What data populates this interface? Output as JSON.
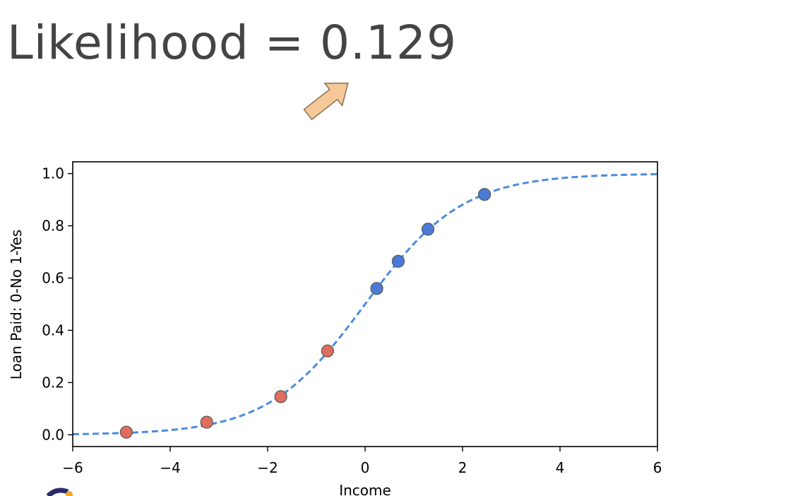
{
  "headline": {
    "label": "Likelihood",
    "operator": "=",
    "value": "0.129"
  },
  "colors": {
    "headline_text": "#444444",
    "arrow_fill": "#f5c997",
    "arrow_stroke": "#8a6d4e",
    "curve": "#4a8be0",
    "class_no": "#e06e5e",
    "class_yes": "#4a7bd8",
    "marker_edge": "#555555"
  },
  "chart_data": {
    "type": "scatter",
    "xlabel": "Income",
    "ylabel": "Loan Paid: 0-No 1-Yes",
    "xlim": [
      -6,
      6
    ],
    "ylim": [
      -0.045,
      1.045
    ],
    "xticks": [
      -6,
      -4,
      -2,
      0,
      2,
      4,
      6
    ],
    "xtick_labels": [
      "−6",
      "−4",
      "−2",
      "0",
      "2",
      "4",
      "6"
    ],
    "yticks": [
      0.0,
      0.2,
      0.4,
      0.6,
      0.8,
      1.0
    ],
    "ytick_labels": [
      "0.0",
      "0.2",
      "0.4",
      "0.6",
      "0.8",
      "1.0"
    ],
    "grid": false,
    "curve": {
      "style": "dashed",
      "function": "logistic",
      "x_start": -6,
      "x_end": 6
    },
    "series": [
      {
        "class": "0",
        "points": [
          {
            "x": -4.9,
            "y": 0.01
          },
          {
            "x": -3.25,
            "y": 0.048
          },
          {
            "x": -1.73,
            "y": 0.146
          },
          {
            "x": -0.77,
            "y": 0.321
          }
        ]
      },
      {
        "class": "1",
        "points": [
          {
            "x": 0.24,
            "y": 0.56
          },
          {
            "x": 0.68,
            "y": 0.664
          },
          {
            "x": 1.29,
            "y": 0.787
          },
          {
            "x": 2.45,
            "y": 0.92
          }
        ]
      }
    ]
  }
}
